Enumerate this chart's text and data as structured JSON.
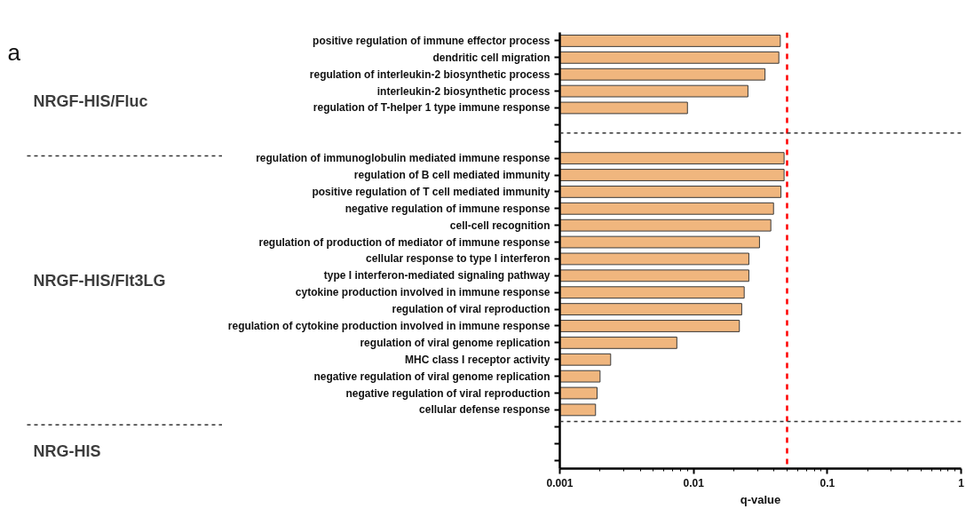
{
  "chart_data": {
    "type": "bar",
    "orientation": "horizontal",
    "xlabel": "q-value",
    "categories": [
      "positive regulation of immune effector process",
      "dendritic cell migration",
      "regulation of interleukin-2 biosynthetic process",
      "interleukin-2 biosynthetic process",
      "regulation of T-helper 1 type immune response",
      null,
      null,
      "regulation of immunoglobulin mediated immune response",
      "regulation of B cell mediated immunity",
      "positive regulation of T cell mediated immunity",
      "negative regulation of immune response",
      "cell-cell recognition",
      "regulation of production of mediator of immune response",
      "cellular response to type I interferon",
      "type I interferon-mediated signaling pathway",
      "cytokine production involved in immune response",
      "regulation of viral reproduction",
      "regulation of cytokine production involved in immune response",
      "regulation of viral genome replication",
      "MHC class I receptor activity",
      "negative regulation of viral genome replication",
      "negative regulation of viral reproduction",
      "cellular defense response",
      null,
      null,
      null
    ],
    "values": [
      0.0445,
      0.0434,
      0.0342,
      0.0255,
      0.009,
      null,
      null,
      0.0475,
      0.0475,
      0.045,
      0.0396,
      0.0378,
      0.0311,
      0.0259,
      0.0259,
      0.0239,
      0.0229,
      0.022,
      0.0075,
      0.0024,
      0.002,
      0.0019,
      0.00185,
      null,
      null,
      null
    ],
    "color": "#f0b67e",
    "log": "x",
    "xlim": [
      0.001,
      1
    ],
    "xticks": [
      0.001,
      0.01,
      0.1,
      1
    ],
    "grid": false,
    "ref_lines": [
      {
        "axis": "x",
        "value": 0.05,
        "color": "#ff0000",
        "line_style": "dashed"
      }
    ],
    "annotations": [
      "a",
      "NRGF-HIS/Fluc",
      "NRGF-HIS/Flt3LG",
      "NRG-HIS"
    ]
  }
}
